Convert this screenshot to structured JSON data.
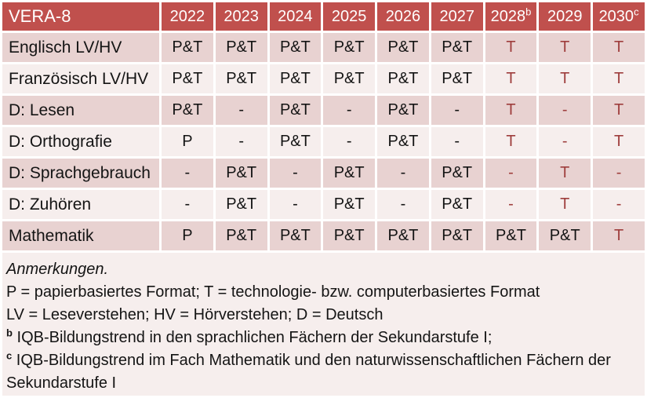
{
  "colors": {
    "header_bg": "#c0504d",
    "header_text": "#ffffff",
    "row_dark": "#e8d2d1",
    "row_light": "#f6eeed",
    "notes_bg": "#f6eeed",
    "red_text": "#9e3d3c",
    "body_text": "#141414",
    "page_bg": "#ffffff"
  },
  "chart_data": {
    "type": "table",
    "title": "VERA-8",
    "categories": [
      "2022",
      "2023",
      "2024",
      "2025",
      "2026",
      "2027",
      "2028",
      "2029",
      "2030"
    ],
    "series": [
      {
        "name": "Englisch LV/HV",
        "values": [
          "P&T",
          "P&T",
          "P&T",
          "P&T",
          "P&T",
          "P&T",
          "T",
          "T",
          "T"
        ]
      },
      {
        "name": "Französisch LV/HV",
        "values": [
          "P&T",
          "P&T",
          "P&T",
          "P&T",
          "P&T",
          "P&T",
          "T",
          "T",
          "T"
        ]
      },
      {
        "name": "D: Lesen",
        "values": [
          "P&T",
          "-",
          "P&T",
          "-",
          "P&T",
          "-",
          "T",
          "-",
          "T"
        ]
      },
      {
        "name": "D: Orthografie",
        "values": [
          "P",
          "-",
          "P&T",
          "-",
          "P&T",
          "-",
          "T",
          "-",
          "T"
        ]
      },
      {
        "name": "D: Sprachgebrauch",
        "values": [
          "-",
          "P&T",
          "-",
          "P&T",
          "-",
          "P&T",
          "-",
          "T",
          "-"
        ]
      },
      {
        "name": "D: Zuhören",
        "values": [
          "-",
          "P&T",
          "-",
          "P&T",
          "-",
          "P&T",
          "-",
          "T",
          "-"
        ]
      },
      {
        "name": "Mathematik",
        "values": [
          "P",
          "P&T",
          "P&T",
          "P&T",
          "P&T",
          "P&T",
          "P&T",
          "P&T",
          "T"
        ]
      }
    ]
  },
  "table": {
    "title": "VERA-8",
    "years": [
      {
        "label": "2022",
        "sup": ""
      },
      {
        "label": "2023",
        "sup": ""
      },
      {
        "label": "2024",
        "sup": ""
      },
      {
        "label": "2025",
        "sup": ""
      },
      {
        "label": "2026",
        "sup": ""
      },
      {
        "label": "2027",
        "sup": ""
      },
      {
        "label": "2028",
        "sup": "b"
      },
      {
        "label": "2029",
        "sup": ""
      },
      {
        "label": "2030",
        "sup": "c"
      }
    ],
    "rows": [
      {
        "label": "Englisch LV/HV",
        "values": [
          "P&T",
          "P&T",
          "P&T",
          "P&T",
          "P&T",
          "P&T",
          "T",
          "T",
          "T"
        ],
        "red": [
          false,
          false,
          false,
          false,
          false,
          false,
          true,
          true,
          true
        ]
      },
      {
        "label": "Französisch LV/HV",
        "values": [
          "P&T",
          "P&T",
          "P&T",
          "P&T",
          "P&T",
          "P&T",
          "T",
          "T",
          "T"
        ],
        "red": [
          false,
          false,
          false,
          false,
          false,
          false,
          true,
          true,
          true
        ]
      },
      {
        "label": "D: Lesen",
        "values": [
          "P&T",
          "-",
          "P&T",
          "-",
          "P&T",
          "-",
          "T",
          "-",
          "T"
        ],
        "red": [
          false,
          false,
          false,
          false,
          false,
          false,
          true,
          true,
          true
        ]
      },
      {
        "label": "D: Orthografie",
        "values": [
          "P",
          "-",
          "P&T",
          "-",
          "P&T",
          "-",
          "T",
          "-",
          "T"
        ],
        "red": [
          false,
          false,
          false,
          false,
          false,
          false,
          true,
          true,
          true
        ]
      },
      {
        "label": "D: Sprachgebrauch",
        "values": [
          "-",
          "P&T",
          "-",
          "P&T",
          "-",
          "P&T",
          "-",
          "T",
          "-"
        ],
        "red": [
          false,
          false,
          false,
          false,
          false,
          false,
          true,
          true,
          true
        ]
      },
      {
        "label": "D: Zuhören",
        "values": [
          "-",
          "P&T",
          "-",
          "P&T",
          "-",
          "P&T",
          "-",
          "T",
          "-"
        ],
        "red": [
          false,
          false,
          false,
          false,
          false,
          false,
          true,
          true,
          true
        ]
      },
      {
        "label": "Mathematik",
        "values": [
          "P",
          "P&T",
          "P&T",
          "P&T",
          "P&T",
          "P&T",
          "P&T",
          "P&T",
          "T"
        ],
        "red": [
          false,
          false,
          false,
          false,
          false,
          false,
          false,
          false,
          true
        ]
      }
    ]
  },
  "notes": {
    "lines": [
      {
        "text": "Anmerkungen.",
        "italic": true,
        "sup": ""
      },
      {
        "text": "P = papierbasiertes Format; T = technologie- bzw. computerbasiertes Format",
        "italic": false,
        "sup": ""
      },
      {
        "text": "LV = Leseverstehen; HV = Hörverstehen; D = Deutsch",
        "italic": false,
        "sup": ""
      },
      {
        "text": "IQB-Bildungstrend in den sprachlichen Fächern der Sekundarstufe I;",
        "italic": false,
        "sup": "b"
      },
      {
        "text": "IQB-Bildungstrend im Fach Mathematik und den naturwissenschaftlichen Fächern der Sekundarstufe I",
        "italic": false,
        "sup": "c"
      }
    ]
  }
}
